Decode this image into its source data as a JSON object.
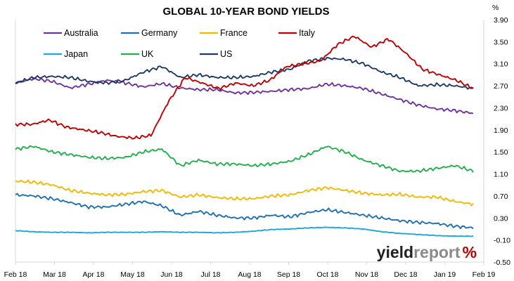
{
  "chart_data": {
    "type": "line",
    "title": "GLOBAL 10-YEAR BOND YIELDS",
    "y_unit": "%",
    "ylim": [
      -0.5,
      3.9
    ],
    "y_ticks": [
      "3.90",
      "3.50",
      "3.10",
      "2.70",
      "2.30",
      "1.90",
      "1.50",
      "1.10",
      "0.70",
      "0.30",
      "-0.10",
      "-0.50"
    ],
    "y_tick_values": [
      3.9,
      3.5,
      3.1,
      2.7,
      2.3,
      1.9,
      1.5,
      1.1,
      0.7,
      0.3,
      -0.1,
      -0.5
    ],
    "x_ticks": [
      "Feb 18",
      "Mar 18",
      "Apr 18",
      "May 18",
      "Jun 18",
      "Jul 18",
      "Aug 18",
      "Sep 18",
      "Oct 18",
      "Nov 18",
      "Dec 18",
      "Jan 19",
      "Feb 19"
    ],
    "grid": false,
    "legend_position": "top-left",
    "series": [
      {
        "name": "Australia",
        "color": "#7030A0",
        "values": [
          2.75,
          2.83,
          2.78,
          2.66,
          2.73,
          2.8,
          2.75,
          2.68,
          2.74,
          2.66,
          2.63,
          2.63,
          2.57,
          2.58,
          2.6,
          2.63,
          2.65,
          2.73,
          2.7,
          2.65,
          2.55,
          2.45,
          2.35,
          2.28,
          2.25,
          2.2
        ]
      },
      {
        "name": "Germany",
        "color": "#1F6FB5",
        "values": [
          0.72,
          0.7,
          0.65,
          0.58,
          0.5,
          0.5,
          0.55,
          0.6,
          0.52,
          0.35,
          0.42,
          0.35,
          0.3,
          0.3,
          0.35,
          0.32,
          0.4,
          0.45,
          0.4,
          0.35,
          0.3,
          0.25,
          0.22,
          0.2,
          0.15,
          0.12
        ]
      },
      {
        "name": "France",
        "color": "#F4B800",
        "values": [
          0.97,
          0.95,
          0.9,
          0.8,
          0.75,
          0.72,
          0.73,
          0.78,
          0.8,
          0.68,
          0.72,
          0.67,
          0.65,
          0.65,
          0.7,
          0.72,
          0.8,
          0.85,
          0.8,
          0.75,
          0.72,
          0.73,
          0.68,
          0.68,
          0.6,
          0.55
        ]
      },
      {
        "name": "Italy",
        "color": "#C00000",
        "values": [
          2.0,
          2.0,
          2.08,
          1.95,
          1.9,
          1.85,
          1.78,
          1.75,
          1.8,
          2.4,
          2.85,
          2.75,
          2.65,
          2.75,
          2.7,
          2.8,
          3.05,
          3.1,
          3.15,
          3.45,
          3.6,
          3.4,
          3.55,
          3.3,
          3.0,
          2.9,
          2.8,
          2.65
        ]
      },
      {
        "name": "Japan",
        "color": "#1AA6E0",
        "values": [
          0.07,
          0.05,
          0.04,
          0.04,
          0.03,
          0.04,
          0.04,
          0.04,
          0.05,
          0.04,
          0.04,
          0.03,
          0.04,
          0.06,
          0.09,
          0.1,
          0.12,
          0.13,
          0.12,
          0.1,
          0.05,
          0.02,
          0.0,
          -0.02,
          -0.03,
          -0.03
        ]
      },
      {
        "name": "UK",
        "color": "#21B04B",
        "values": [
          1.55,
          1.6,
          1.5,
          1.45,
          1.4,
          1.38,
          1.4,
          1.5,
          1.55,
          1.25,
          1.35,
          1.28,
          1.28,
          1.25,
          1.28,
          1.33,
          1.45,
          1.6,
          1.5,
          1.35,
          1.25,
          1.15,
          1.15,
          1.2,
          1.25,
          1.15
        ]
      },
      {
        "name": "US",
        "color": "#1F3864",
        "values": [
          2.75,
          2.85,
          2.87,
          2.85,
          2.78,
          2.75,
          2.8,
          2.95,
          3.05,
          2.85,
          2.9,
          2.85,
          2.85,
          2.87,
          2.95,
          3.0,
          3.15,
          3.2,
          3.18,
          3.1,
          2.95,
          2.85,
          2.7,
          2.72,
          2.7,
          2.65
        ]
      }
    ]
  },
  "logo": {
    "word1": "yield",
    "word2": "report",
    "symbol": "%"
  }
}
